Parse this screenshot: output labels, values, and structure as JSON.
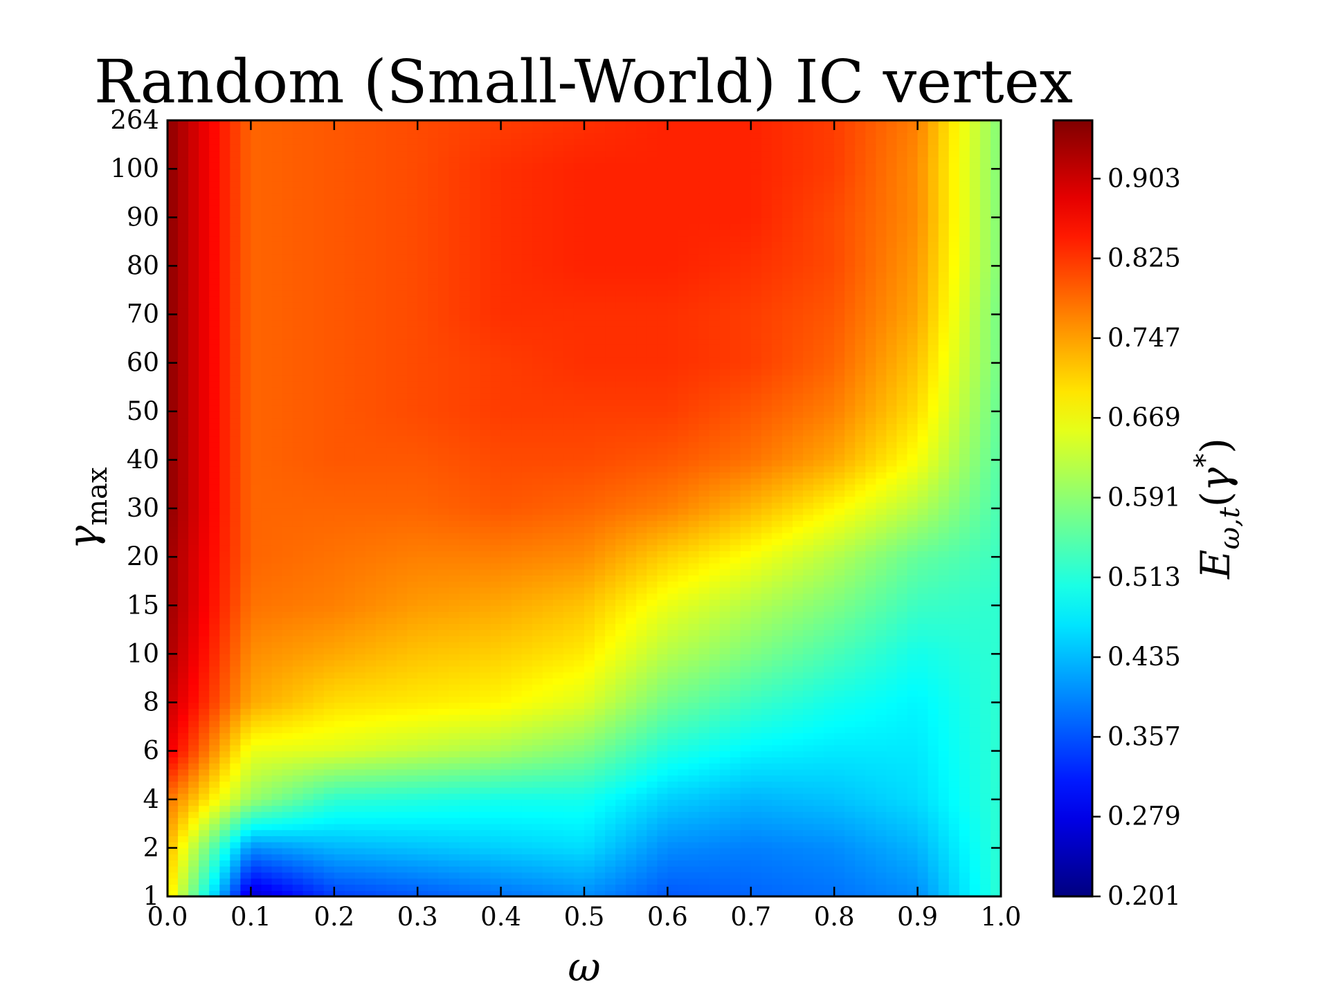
{
  "chart_data": {
    "type": "heatmap",
    "title": "Random (Small-World) IC vertex",
    "xlabel": "ω",
    "ylabel": "γmax",
    "colorbar_label": "E_{ω,t}(γ*)",
    "colormap": "jet",
    "x": [
      0.0,
      0.1,
      0.2,
      0.3,
      0.4,
      0.5,
      0.6,
      0.7,
      0.8,
      0.9,
      1.0
    ],
    "x_tick_labels": [
      "0.0",
      "0.1",
      "0.2",
      "0.3",
      "0.4",
      "0.5",
      "0.6",
      "0.7",
      "0.8",
      "0.9",
      "1.0"
    ],
    "xlim": [
      0.0,
      1.0
    ],
    "y_tick_labels": [
      "1",
      "2",
      "4",
      "6",
      "8",
      "10",
      "15",
      "20",
      "30",
      "40",
      "50",
      "60",
      "70",
      "80",
      "90",
      "100",
      "264"
    ],
    "y_scale": "categorical (evenly spaced levels)",
    "colorbar_ticks": [
      "0.201",
      "0.279",
      "0.357",
      "0.435",
      "0.513",
      "0.591",
      "0.669",
      "0.747",
      "0.825",
      "0.903"
    ],
    "zlim": [
      0.201,
      0.96
    ],
    "z": [
      [
        0.7,
        0.26,
        0.34,
        0.36,
        0.38,
        0.4,
        0.36,
        0.37,
        0.38,
        0.4,
        0.52
      ],
      [
        0.73,
        0.4,
        0.43,
        0.44,
        0.45,
        0.46,
        0.4,
        0.39,
        0.4,
        0.43,
        0.52
      ],
      [
        0.78,
        0.6,
        0.52,
        0.51,
        0.5,
        0.5,
        0.45,
        0.43,
        0.44,
        0.46,
        0.52
      ],
      [
        0.88,
        0.66,
        0.65,
        0.63,
        0.61,
        0.58,
        0.51,
        0.48,
        0.47,
        0.47,
        0.52
      ],
      [
        0.91,
        0.74,
        0.7,
        0.69,
        0.68,
        0.65,
        0.57,
        0.53,
        0.5,
        0.48,
        0.52
      ],
      [
        0.93,
        0.76,
        0.74,
        0.72,
        0.71,
        0.69,
        0.62,
        0.58,
        0.54,
        0.5,
        0.52
      ],
      [
        0.94,
        0.78,
        0.77,
        0.75,
        0.74,
        0.72,
        0.66,
        0.62,
        0.58,
        0.53,
        0.52
      ],
      [
        0.94,
        0.79,
        0.78,
        0.77,
        0.77,
        0.76,
        0.71,
        0.67,
        0.62,
        0.56,
        0.53
      ],
      [
        0.95,
        0.79,
        0.79,
        0.79,
        0.8,
        0.79,
        0.77,
        0.73,
        0.68,
        0.62,
        0.54
      ],
      [
        0.95,
        0.79,
        0.8,
        0.8,
        0.81,
        0.81,
        0.8,
        0.78,
        0.74,
        0.67,
        0.55
      ],
      [
        0.95,
        0.79,
        0.8,
        0.81,
        0.82,
        0.82,
        0.82,
        0.8,
        0.77,
        0.7,
        0.56
      ],
      [
        0.95,
        0.79,
        0.8,
        0.81,
        0.82,
        0.83,
        0.83,
        0.82,
        0.79,
        0.72,
        0.57
      ],
      [
        0.95,
        0.79,
        0.8,
        0.81,
        0.83,
        0.83,
        0.83,
        0.82,
        0.8,
        0.74,
        0.57
      ],
      [
        0.95,
        0.79,
        0.8,
        0.81,
        0.83,
        0.84,
        0.84,
        0.83,
        0.81,
        0.75,
        0.58
      ],
      [
        0.95,
        0.79,
        0.8,
        0.81,
        0.83,
        0.84,
        0.84,
        0.84,
        0.81,
        0.76,
        0.58
      ],
      [
        0.95,
        0.79,
        0.8,
        0.81,
        0.83,
        0.84,
        0.84,
        0.84,
        0.82,
        0.76,
        0.58
      ],
      [
        0.95,
        0.79,
        0.8,
        0.81,
        0.82,
        0.83,
        0.84,
        0.84,
        0.82,
        0.77,
        0.58
      ]
    ]
  }
}
